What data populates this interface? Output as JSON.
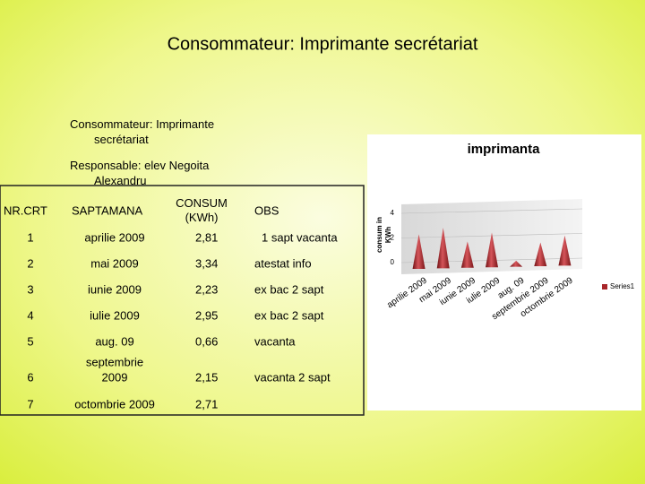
{
  "title": "Consommateur: Imprimante secrétariat",
  "info": {
    "consumer": [
      "Consommateur: Imprimante",
      "secrétariat"
    ],
    "responsible": [
      "Responsable: elev Negoita",
      "Alexandru"
    ]
  },
  "table": {
    "header": [
      "NR.CRT",
      "SAPTAMANA",
      [
        "CONSUM",
        "(KWh)"
      ],
      "OBS"
    ],
    "rows": [
      [
        "1",
        "aprilie 2009",
        "2,81",
        "1 sapt vacanta"
      ],
      [
        "2",
        "mai 2009",
        "3,34",
        "atestat info"
      ],
      [
        "3",
        "iunie 2009",
        "2,23",
        "ex bac 2 sapt"
      ],
      [
        "4",
        "iulie 2009",
        "2,95",
        "ex bac 2 sapt"
      ],
      [
        "5",
        "aug. 09",
        "0,66",
        "vacanta"
      ],
      [
        "6",
        [
          "septembrie",
          "2009"
        ],
        "2,15",
        "vacanta 2 sapt"
      ],
      [
        "7",
        "octombrie 2009",
        "2,71"
      ]
    ]
  },
  "chart_data": {
    "type": "cone",
    "title": "imprimanta",
    "y_label": [
      "consum in",
      "KWh"
    ],
    "categories": [
      "aprilie 2009",
      "mai 2009",
      "iunie 2009",
      "iulie 2009",
      "aug. 09",
      "septembrie 2009",
      "octombrie 2009"
    ],
    "series": [
      {
        "name": "Series1",
        "color": "#a8262a",
        "values": [
          2.81,
          3.34,
          2.23,
          2.95,
          0.66,
          2.15,
          2.71
        ]
      }
    ],
    "ylim": [
      0,
      4
    ],
    "yticks": [
      0,
      2,
      4
    ],
    "grid": true
  }
}
